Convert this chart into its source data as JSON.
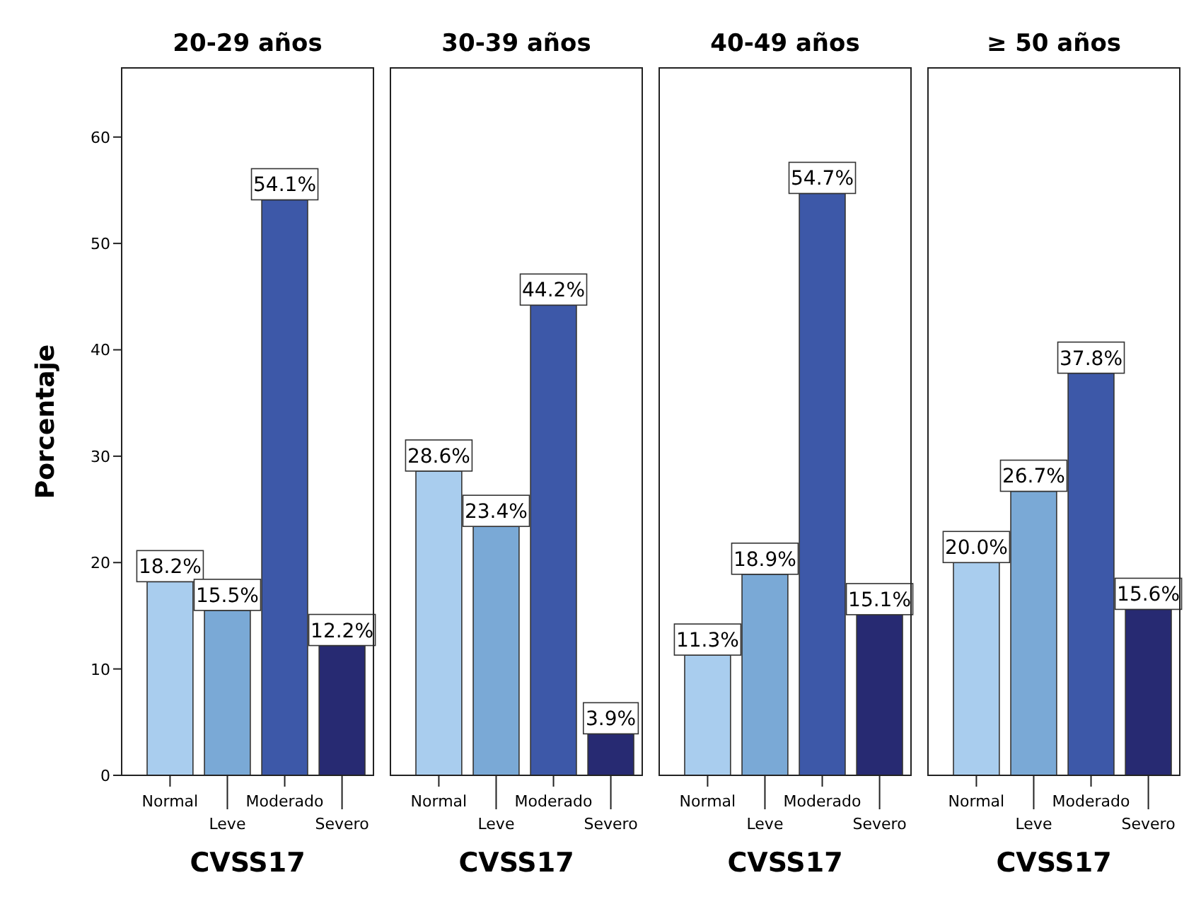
{
  "chart_data": [
    {
      "type": "bar",
      "title": "20-29 años",
      "xlabel": "CVSS17",
      "ylabel": "Porcentaje",
      "categories": [
        "Normal",
        "Leve",
        "Moderado",
        "Severo"
      ],
      "values": [
        18.2,
        15.5,
        54.1,
        12.2
      ],
      "colors": [
        "#a9cdee",
        "#7aa9d6",
        "#3d58a8",
        "#272a72"
      ],
      "value_labels": [
        "18.2%",
        "15.5%",
        "54.1%",
        "12.2%"
      ],
      "ylim": [
        0,
        66.5
      ],
      "yticks": [
        0,
        10,
        20,
        30,
        40,
        50,
        60
      ]
    },
    {
      "type": "bar",
      "title": "30-39 años",
      "xlabel": "CVSS17",
      "categories": [
        "Normal",
        "Leve",
        "Moderado",
        "Severo"
      ],
      "values": [
        28.6,
        23.4,
        44.2,
        3.9
      ],
      "colors": [
        "#a9cdee",
        "#7aa9d6",
        "#3d58a8",
        "#272a72"
      ],
      "value_labels": [
        "28.6%",
        "23.4%",
        "44.2%",
        "3.9%"
      ],
      "ylim": [
        0,
        66.5
      ],
      "tick_labels": "x"
    },
    {
      "type": "bar",
      "title": "40-49 años",
      "xlabel": "CVSS17",
      "categories": [
        "Normal",
        "Leve",
        "Moderado",
        "Severo"
      ],
      "values": [
        11.3,
        18.9,
        54.7,
        15.1
      ],
      "colors": [
        "#a9cdee",
        "#7aa9d6",
        "#3d58a8",
        "#272a72"
      ],
      "value_labels": [
        "11.3%",
        "18.9%",
        "54.7%",
        "15.1%"
      ],
      "ylim": [
        0,
        66.5
      ],
      "tick_labels": "x"
    },
    {
      "type": "bar",
      "title": "≥ 50 años",
      "xlabel": "CVSS17",
      "categories": [
        "Normal",
        "Leve",
        "Moderado",
        "Severo"
      ],
      "values": [
        20.0,
        26.7,
        37.8,
        15.6
      ],
      "colors": [
        "#a9cdee",
        "#7aa9d6",
        "#3d58a8",
        "#272a72"
      ],
      "value_labels": [
        "20.0%",
        "26.7%",
        "37.8%",
        "15.6%"
      ],
      "ylim": [
        0,
        66.5
      ],
      "tick_labels": "x"
    }
  ]
}
